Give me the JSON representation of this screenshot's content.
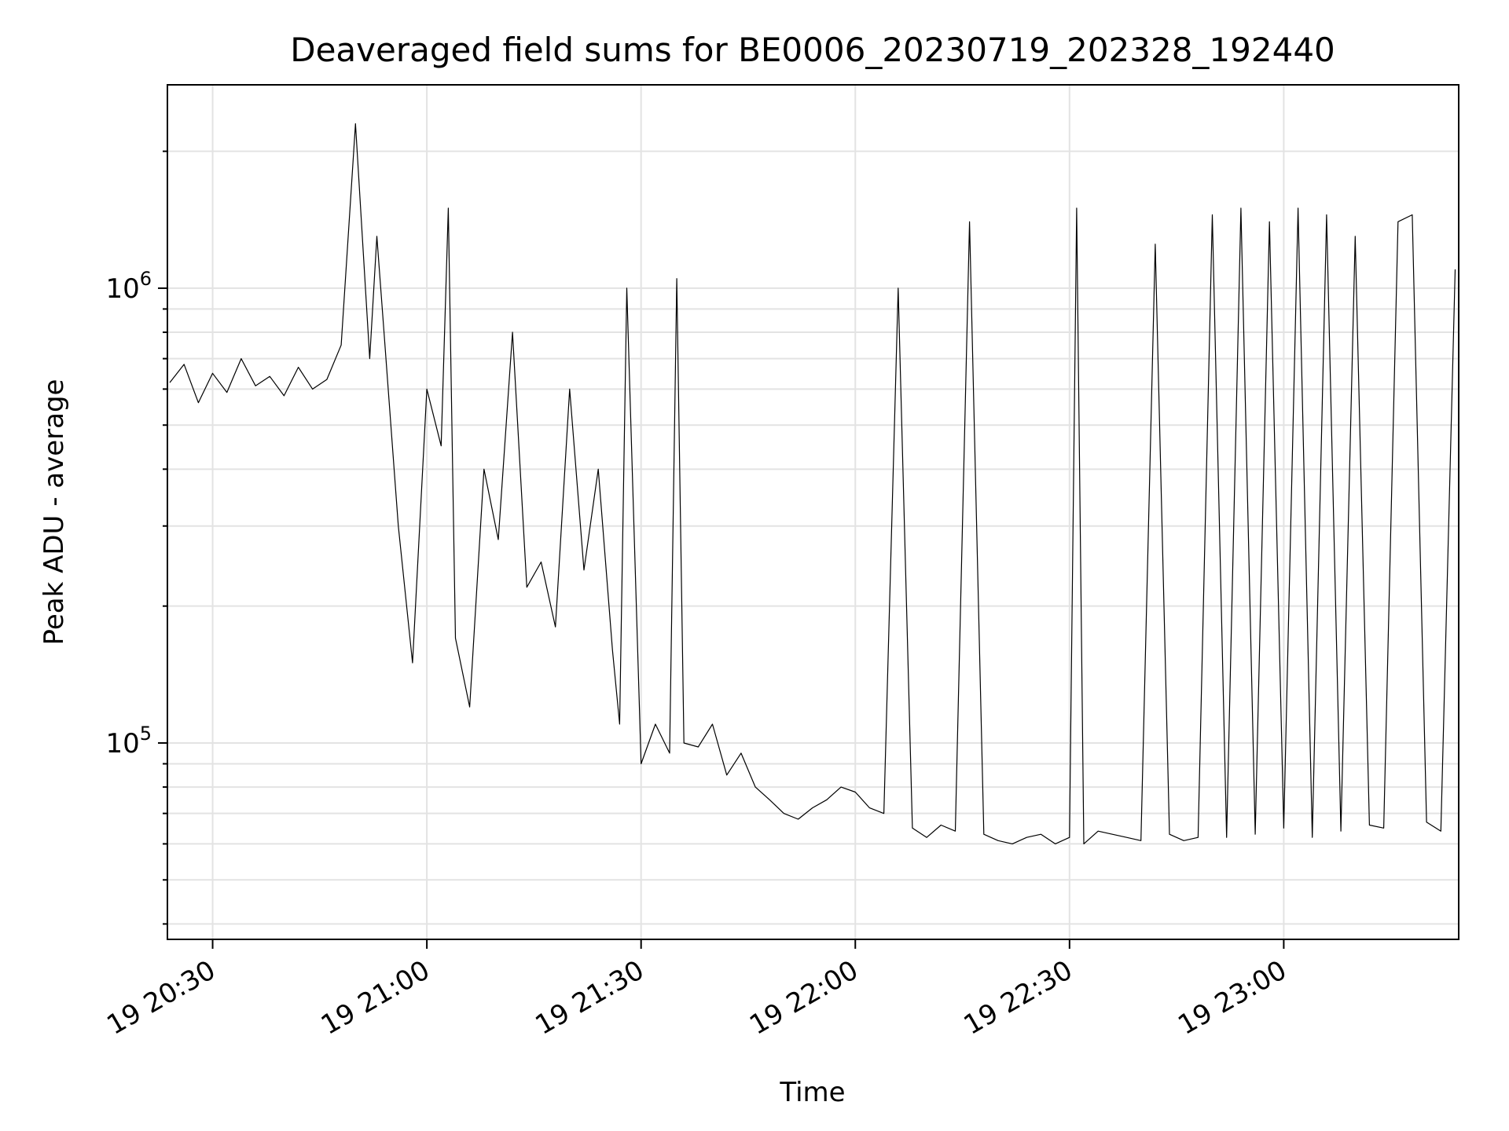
{
  "chart_data": {
    "type": "line",
    "title": "Deaveraged field sums for BE0006_20230719_202328_192440",
    "xlabel": "Time",
    "ylabel": "Peak ADU - average",
    "y_scale": "log",
    "ylim": [
      37000,
      2800000
    ],
    "xlim": [
      "2023-07-19 20:23:40",
      "2023-07-19 23:24:30"
    ],
    "grid": true,
    "line_color": "#000000",
    "x_ticks": [
      {
        "value": "2023-07-19 20:30",
        "label": "19 20:30"
      },
      {
        "value": "2023-07-19 21:00",
        "label": "19 21:00"
      },
      {
        "value": "2023-07-19 21:30",
        "label": "19 21:30"
      },
      {
        "value": "2023-07-19 22:00",
        "label": "19 22:00"
      },
      {
        "value": "2023-07-19 22:30",
        "label": "19 22:30"
      },
      {
        "value": "2023-07-19 23:00",
        "label": "19 23:00"
      }
    ],
    "y_ticks": [
      {
        "value": 100000,
        "base": "10",
        "exp": "5"
      },
      {
        "value": 1000000,
        "base": "10",
        "exp": "6"
      }
    ],
    "series": [
      {
        "x": [
          "2023-07-19 20:24",
          "2023-07-19 20:26",
          "2023-07-19 20:28",
          "2023-07-19 20:30",
          "2023-07-19 20:32",
          "2023-07-19 20:34",
          "2023-07-19 20:36",
          "2023-07-19 20:38",
          "2023-07-19 20:40",
          "2023-07-19 20:42",
          "2023-07-19 20:44",
          "2023-07-19 20:46",
          "2023-07-19 20:48",
          "2023-07-19 20:50",
          "2023-07-19 20:52",
          "2023-07-19 20:53",
          "2023-07-19 20:54",
          "2023-07-19 20:56",
          "2023-07-19 20:58",
          "2023-07-19 21:00",
          "2023-07-19 21:02",
          "2023-07-19 21:03",
          "2023-07-19 21:04",
          "2023-07-19 21:06",
          "2023-07-19 21:08",
          "2023-07-19 21:10",
          "2023-07-19 21:12",
          "2023-07-19 21:14",
          "2023-07-19 21:16",
          "2023-07-19 21:18",
          "2023-07-19 21:20",
          "2023-07-19 21:22",
          "2023-07-19 21:24",
          "2023-07-19 21:26",
          "2023-07-19 21:27",
          "2023-07-19 21:28",
          "2023-07-19 21:30",
          "2023-07-19 21:32",
          "2023-07-19 21:34",
          "2023-07-19 21:35",
          "2023-07-19 21:36",
          "2023-07-19 21:38",
          "2023-07-19 21:40",
          "2023-07-19 21:42",
          "2023-07-19 21:44",
          "2023-07-19 21:46",
          "2023-07-19 21:48",
          "2023-07-19 21:50",
          "2023-07-19 21:52",
          "2023-07-19 21:54",
          "2023-07-19 21:56",
          "2023-07-19 21:58",
          "2023-07-19 22:00",
          "2023-07-19 22:02",
          "2023-07-19 22:04",
          "2023-07-19 22:06",
          "2023-07-19 22:08",
          "2023-07-19 22:10",
          "2023-07-19 22:12",
          "2023-07-19 22:14",
          "2023-07-19 22:16",
          "2023-07-19 22:18",
          "2023-07-19 22:20",
          "2023-07-19 22:22",
          "2023-07-19 22:24",
          "2023-07-19 22:26",
          "2023-07-19 22:28",
          "2023-07-19 22:30",
          "2023-07-19 22:31",
          "2023-07-19 22:32",
          "2023-07-19 22:34",
          "2023-07-19 22:36",
          "2023-07-19 22:38",
          "2023-07-19 22:40",
          "2023-07-19 22:42",
          "2023-07-19 22:44",
          "2023-07-19 22:46",
          "2023-07-19 22:48",
          "2023-07-19 22:50",
          "2023-07-19 22:52",
          "2023-07-19 22:54",
          "2023-07-19 22:56",
          "2023-07-19 22:58",
          "2023-07-19 23:00",
          "2023-07-19 23:02",
          "2023-07-19 23:04",
          "2023-07-19 23:06",
          "2023-07-19 23:08",
          "2023-07-19 23:10",
          "2023-07-19 23:12",
          "2023-07-19 23:14",
          "2023-07-19 23:16",
          "2023-07-19 23:18",
          "2023-07-19 23:20",
          "2023-07-19 23:22",
          "2023-07-19 23:24"
        ],
        "values": [
          620000,
          680000,
          560000,
          650000,
          590000,
          700000,
          610000,
          640000,
          580000,
          670000,
          600000,
          630000,
          750000,
          2300000,
          700000,
          1300000,
          800000,
          300000,
          150000,
          600000,
          450000,
          1500000,
          170000,
          120000,
          400000,
          280000,
          800000,
          220000,
          250000,
          180000,
          600000,
          240000,
          400000,
          160000,
          110000,
          1000000,
          90000,
          110000,
          95000,
          1050000,
          100000,
          98000,
          110000,
          85000,
          95000,
          80000,
          75000,
          70000,
          68000,
          72000,
          75000,
          80000,
          78000,
          72000,
          70000,
          1000000,
          65000,
          62000,
          66000,
          64000,
          1400000,
          63000,
          61000,
          60000,
          62000,
          63000,
          60000,
          62000,
          1500000,
          60000,
          64000,
          63000,
          62000,
          61000,
          1250000,
          63000,
          61000,
          62000,
          1450000,
          62000,
          1500000,
          63000,
          1400000,
          65000,
          1500000,
          62000,
          1450000,
          64000,
          1300000,
          66000,
          65000,
          1400000,
          1450000,
          67000,
          64000,
          1100000
        ]
      }
    ]
  }
}
